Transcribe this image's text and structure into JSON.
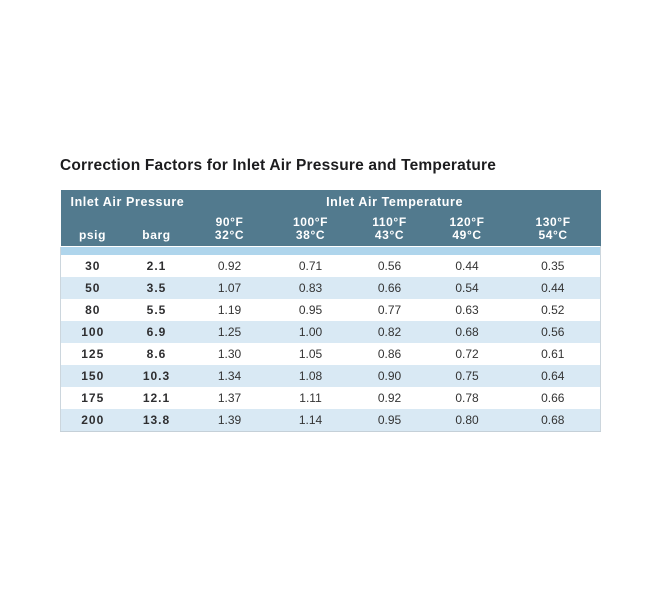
{
  "page": {
    "title": "Correction Factors for Inlet Air Pressure and Temperature"
  },
  "chart_data": {
    "type": "table",
    "title": "Correction Factors for Inlet Air Pressure and Temperature",
    "group_headers": [
      {
        "label": "Inlet Air Pressure",
        "colspan": 2
      },
      {
        "label": "Inlet Air Temperature",
        "colspan": 5
      }
    ],
    "columns": [
      {
        "label": "psig"
      },
      {
        "label": "barg"
      },
      {
        "label_f": "90°F",
        "label_c": "32°C"
      },
      {
        "label_f": "100°F",
        "label_c": "38°C"
      },
      {
        "label_f": "110°F",
        "label_c": "43°C"
      },
      {
        "label_f": "120°F",
        "label_c": "49°C"
      },
      {
        "label_f": "130°F",
        "label_c": "54°C"
      }
    ],
    "rows": [
      [
        "30",
        "2.1",
        "0.92",
        "0.71",
        "0.56",
        "0.44",
        "0.35"
      ],
      [
        "50",
        "3.5",
        "1.07",
        "0.83",
        "0.66",
        "0.54",
        "0.44"
      ],
      [
        "80",
        "5.5",
        "1.19",
        "0.95",
        "0.77",
        "0.63",
        "0.52"
      ],
      [
        "100",
        "6.9",
        "1.25",
        "1.00",
        "0.82",
        "0.68",
        "0.56"
      ],
      [
        "125",
        "8.6",
        "1.30",
        "1.05",
        "0.86",
        "0.72",
        "0.61"
      ],
      [
        "150",
        "10.3",
        "1.34",
        "1.08",
        "0.90",
        "0.75",
        "0.64"
      ],
      [
        "175",
        "12.1",
        "1.37",
        "1.11",
        "0.92",
        "0.78",
        "0.66"
      ],
      [
        "200",
        "13.8",
        "1.39",
        "1.14",
        "0.95",
        "0.80",
        "0.68"
      ]
    ]
  },
  "colors": {
    "header_bg": "#527A8E",
    "header_text": "#FFFFFF",
    "spacer_row_bg": "#AFD5EC",
    "row_bg": "#FFFFFF",
    "row_alt_bg": "#D9E9F4",
    "body_text": "#333333",
    "title_text": "#1C1C1E",
    "table_border": "#CCD6DD",
    "page_bg": "#FFFFFF"
  }
}
